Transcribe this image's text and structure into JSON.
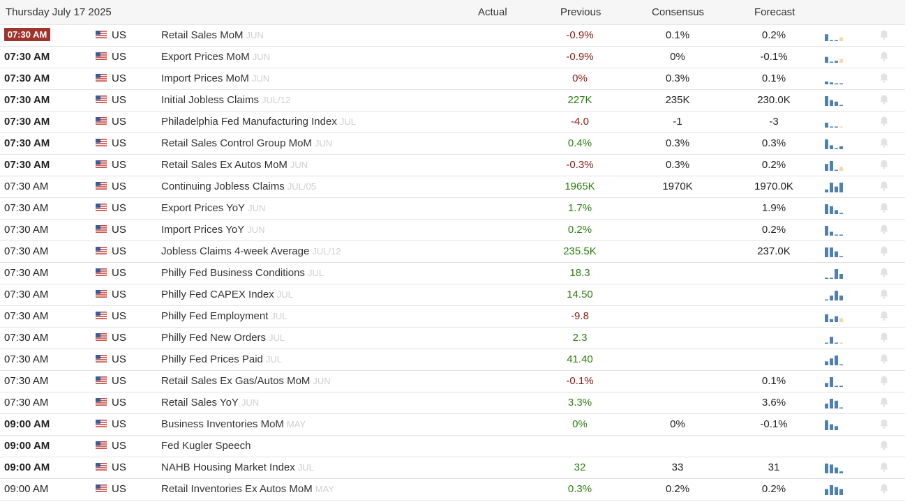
{
  "calendar": {
    "date_label": "Thursday July 17 2025",
    "columns": {
      "actual": "Actual",
      "previous": "Previous",
      "consensus": "Consensus",
      "forecast": "Forecast"
    }
  },
  "colors": {
    "positive": "#2e7d12",
    "negative": "#8b1a12",
    "bar": "#4e81b0",
    "bar_forecast": "#f2d9a6",
    "highlight_time_bg": "#a0342d"
  },
  "icons": {
    "flag": "us-flag-icon",
    "alert": "bell-icon",
    "trend": "mini-bar-chart-icon"
  },
  "rows": [
    {
      "time": "07:30 AM",
      "bold": true,
      "current": true,
      "country": "US",
      "event": "Retail Sales MoM",
      "period": "JUN",
      "actual": "",
      "previous": "-0.9%",
      "previous_tone": "neg",
      "consensus": "0.1%",
      "forecast": "0.2%",
      "trend": [
        0.7,
        0.05,
        0.05,
        0.4
      ],
      "forecast_bar": true
    },
    {
      "time": "07:30 AM",
      "bold": true,
      "current": false,
      "country": "US",
      "event": "Export Prices MoM",
      "period": "JUN",
      "actual": "",
      "previous": "-0.9%",
      "previous_tone": "neg",
      "consensus": "0%",
      "forecast": "-0.1%",
      "trend": [
        0.6,
        0.05,
        0.2,
        0.4
      ],
      "forecast_bar": true
    },
    {
      "time": "07:30 AM",
      "bold": true,
      "current": false,
      "country": "US",
      "event": "Import Prices MoM",
      "period": "JUN",
      "actual": "",
      "previous": "0%",
      "previous_tone": "neg",
      "consensus": "0.3%",
      "forecast": "0.1%",
      "trend": [
        0.3,
        0.2,
        0.05,
        0.1
      ],
      "forecast_bar": false
    },
    {
      "time": "07:30 AM",
      "bold": true,
      "current": false,
      "country": "US",
      "event": "Initial Jobless Claims",
      "period": "JUL/12",
      "actual": "",
      "previous": "227K",
      "previous_tone": "pos",
      "consensus": "235K",
      "forecast": "230.0K",
      "trend": [
        1.0,
        0.6,
        0.45,
        0.08
      ],
      "forecast_bar": false
    },
    {
      "time": "07:30 AM",
      "bold": true,
      "current": false,
      "country": "US",
      "event": "Philadelphia Fed Manufacturing Index",
      "period": "JUL",
      "actual": "",
      "previous": "-4.0",
      "previous_tone": "neg",
      "consensus": "-1",
      "forecast": "-3",
      "trend": [
        0.5,
        0.05,
        0.05,
        0.05
      ],
      "forecast_bar": true
    },
    {
      "time": "07:30 AM",
      "bold": true,
      "current": false,
      "country": "US",
      "event": "Retail Sales Control Group MoM",
      "period": "JUN",
      "actual": "",
      "previous": "0.4%",
      "previous_tone": "pos",
      "consensus": "0.3%",
      "forecast": "0.3%",
      "trend": [
        1.0,
        0.4,
        0.05,
        0.3
      ],
      "forecast_bar": false
    },
    {
      "time": "07:30 AM",
      "bold": true,
      "current": false,
      "country": "US",
      "event": "Retail Sales Ex Autos MoM",
      "period": "JUN",
      "actual": "",
      "previous": "-0.3%",
      "previous_tone": "neg",
      "consensus": "0.3%",
      "forecast": "0.2%",
      "trend": [
        0.7,
        1.0,
        0.05,
        0.4
      ],
      "forecast_bar": true
    },
    {
      "time": "07:30 AM",
      "bold": false,
      "current": false,
      "country": "US",
      "event": "Continuing Jobless Claims",
      "period": "JUL/05",
      "actual": "",
      "previous": "1965K",
      "previous_tone": "pos",
      "consensus": "1970K",
      "forecast": "1970.0K",
      "trend": [
        0.3,
        1.0,
        0.6,
        1.0
      ],
      "forecast_bar": false
    },
    {
      "time": "07:30 AM",
      "bold": false,
      "current": false,
      "country": "US",
      "event": "Export Prices YoY",
      "period": "JUN",
      "actual": "",
      "previous": "1.7%",
      "previous_tone": "pos",
      "consensus": "",
      "forecast": "1.9%",
      "trend": [
        1.0,
        0.8,
        0.4,
        0.08
      ],
      "forecast_bar": false
    },
    {
      "time": "07:30 AM",
      "bold": false,
      "current": false,
      "country": "US",
      "event": "Import Prices YoY",
      "period": "JUN",
      "actual": "",
      "previous": "0.2%",
      "previous_tone": "pos",
      "consensus": "",
      "forecast": "0.2%",
      "trend": [
        1.0,
        0.4,
        0.08,
        0.08
      ],
      "forecast_bar": false
    },
    {
      "time": "07:30 AM",
      "bold": false,
      "current": false,
      "country": "US",
      "event": "Jobless Claims 4-week Average",
      "period": "JUL/12",
      "actual": "",
      "previous": "235.5K",
      "previous_tone": "pos",
      "consensus": "",
      "forecast": "237.0K",
      "trend": [
        1.0,
        1.0,
        0.6,
        0.1
      ],
      "forecast_bar": false
    },
    {
      "time": "07:30 AM",
      "bold": false,
      "current": false,
      "country": "US",
      "event": "Philly Fed Business Conditions",
      "period": "JUL",
      "actual": "",
      "previous": "18.3",
      "previous_tone": "pos",
      "consensus": "",
      "forecast": "",
      "trend": [
        0.1,
        0.1,
        1.0,
        0.5
      ],
      "forecast_bar": false
    },
    {
      "time": "07:30 AM",
      "bold": false,
      "current": false,
      "country": "US",
      "event": "Philly Fed CAPEX Index",
      "period": "JUL",
      "actual": "",
      "previous": "14.50",
      "previous_tone": "pos",
      "consensus": "",
      "forecast": "",
      "trend": [
        0.1,
        0.5,
        1.0,
        0.5
      ],
      "forecast_bar": false
    },
    {
      "time": "07:30 AM",
      "bold": false,
      "current": false,
      "country": "US",
      "event": "Philly Fed Employment",
      "period": "JUL",
      "actual": "",
      "previous": "-9.8",
      "previous_tone": "neg",
      "consensus": "",
      "forecast": "",
      "trend": [
        0.8,
        0.3,
        0.6,
        0.4
      ],
      "forecast_bar": true
    },
    {
      "time": "07:30 AM",
      "bold": false,
      "current": false,
      "country": "US",
      "event": "Philly Fed New Orders",
      "period": "JUL",
      "actual": "",
      "previous": "2.3",
      "previous_tone": "pos",
      "consensus": "",
      "forecast": "",
      "trend": [
        0.05,
        0.7,
        0.1,
        0.05
      ],
      "forecast_bar": true
    },
    {
      "time": "07:30 AM",
      "bold": false,
      "current": false,
      "country": "US",
      "event": "Philly Fed Prices Paid",
      "period": "JUL",
      "actual": "",
      "previous": "41.40",
      "previous_tone": "pos",
      "consensus": "",
      "forecast": "",
      "trend": [
        0.4,
        0.7,
        1.0,
        0.1
      ],
      "forecast_bar": false
    },
    {
      "time": "07:30 AM",
      "bold": false,
      "current": false,
      "country": "US",
      "event": "Retail Sales Ex Gas/Autos MoM",
      "period": "JUN",
      "actual": "",
      "previous": "-0.1%",
      "previous_tone": "neg",
      "consensus": "",
      "forecast": "0.1%",
      "trend": [
        0.4,
        1.0,
        0.05,
        0.1
      ],
      "forecast_bar": false
    },
    {
      "time": "07:30 AM",
      "bold": false,
      "current": false,
      "country": "US",
      "event": "Retail Sales YoY",
      "period": "JUN",
      "actual": "",
      "previous": "3.3%",
      "previous_tone": "pos",
      "consensus": "",
      "forecast": "3.6%",
      "trend": [
        0.5,
        1.0,
        0.8,
        0.1
      ],
      "forecast_bar": false
    },
    {
      "time": "09:00 AM",
      "bold": true,
      "current": false,
      "country": "US",
      "event": "Business Inventories MoM",
      "period": "MAY",
      "actual": "",
      "previous": "0%",
      "previous_tone": "pos",
      "consensus": "0%",
      "forecast": "-0.1%",
      "trend": [
        1.0,
        0.6,
        0.4
      ],
      "forecast_bar": false
    },
    {
      "time": "09:00 AM",
      "bold": true,
      "current": false,
      "country": "US",
      "event": "Fed Kugler Speech",
      "period": "",
      "actual": "",
      "previous": "",
      "previous_tone": "neu",
      "consensus": "",
      "forecast": "",
      "trend": [],
      "forecast_bar": false
    },
    {
      "time": "09:00 AM",
      "bold": true,
      "current": false,
      "country": "US",
      "event": "NAHB Housing Market Index",
      "period": "JUL",
      "actual": "",
      "previous": "32",
      "previous_tone": "pos",
      "consensus": "33",
      "forecast": "31",
      "trend": [
        1.0,
        0.9,
        0.6,
        0.2
      ],
      "forecast_bar": false
    },
    {
      "time": "09:00 AM",
      "bold": false,
      "current": false,
      "country": "US",
      "event": "Retail Inventories Ex Autos MoM",
      "period": "MAY",
      "actual": "",
      "previous": "0.3%",
      "previous_tone": "pos",
      "consensus": "0.2%",
      "forecast": "0.2%",
      "trend": [
        0.6,
        1.0,
        0.8,
        0.6
      ],
      "forecast_bar": false
    }
  ]
}
